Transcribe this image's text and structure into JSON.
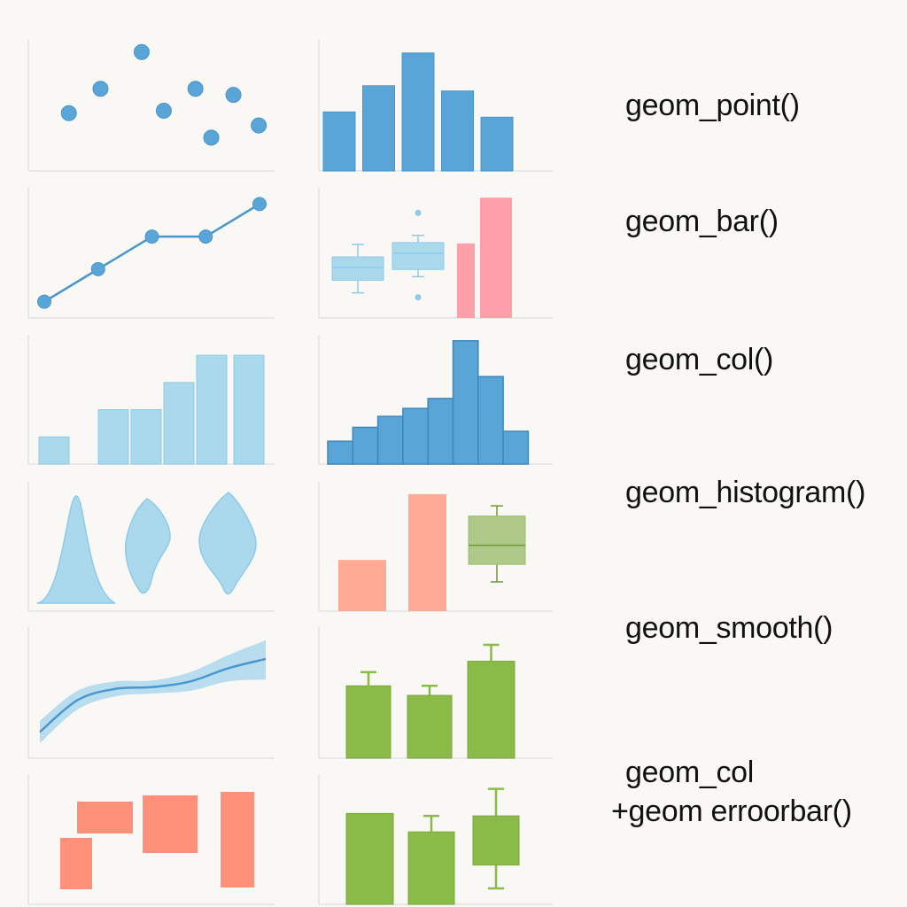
{
  "colors": {
    "background": "#faf8f4",
    "axis": "#e2e2e2",
    "blue": "#5aa5d8",
    "blue_line": "#4a97cf",
    "light_blue": "#aad8ec",
    "light_blue_stroke": "#8ecbe6",
    "pink": "#ff9faa",
    "salmon": "#ffaa94",
    "orange": "#ff8b73",
    "green": "#8aba47",
    "green_dark": "#6e9a34",
    "olive": "#aec988"
  },
  "labels": {
    "point": "geom_point()",
    "bar": "geom_bar()",
    "col": "geom_col()",
    "histogram": "geom_histogram()",
    "smooth": "geom_smooth()",
    "col_error_1": "geom_col",
    "col_error_2": "+geom erroorbar()"
  },
  "chart_data": [
    {
      "type": "scatter",
      "points": [
        [
          1,
          4
        ],
        [
          2,
          6
        ],
        [
          3.3,
          9
        ],
        [
          4,
          4.2
        ],
        [
          5,
          6
        ],
        [
          5.5,
          2
        ],
        [
          6.2,
          5.5
        ],
        [
          7,
          3
        ]
      ],
      "xlim": [
        0,
        7.5
      ],
      "ylim": [
        0,
        10
      ],
      "color": "blue"
    },
    {
      "type": "bar",
      "values": [
        4.5,
        6.5,
        9,
        6.1,
        4.1
      ],
      "ylim": [
        0,
        10
      ],
      "color": "blue"
    },
    {
      "type": "line",
      "points": [
        [
          0,
          1
        ],
        [
          1,
          3
        ],
        [
          2,
          5
        ],
        [
          3,
          5
        ],
        [
          4,
          7
        ]
      ],
      "xlim": [
        0,
        4
      ],
      "ylim": [
        0,
        8
      ],
      "color": "blue_line"
    },
    {
      "type": "boxplot_with_bars",
      "boxes": [
        {
          "x": 1,
          "q1": 4.2,
          "q3": 6.8,
          "median": 5.6,
          "whisker_low": 2.8,
          "whisker_high": 8.2,
          "outliers": []
        },
        {
          "x": 2,
          "q1": 5.4,
          "q3": 8.4,
          "median": 7.2,
          "whisker_low": 4.6,
          "whisker_high": 9.2,
          "outliers": [
            2.3,
            11.7
          ]
        }
      ],
      "bars": [
        {
          "x": 3.1,
          "value": 8.3,
          "color": "pink"
        },
        {
          "x": 3.7,
          "value": 13.4,
          "color": "pink"
        }
      ],
      "ylim": [
        0,
        14.5
      ]
    },
    {
      "type": "bar",
      "values": [
        2,
        0,
        4,
        4,
        6,
        8,
        8
      ],
      "ylim": [
        0,
        9.5
      ],
      "color": "light_blue"
    },
    {
      "type": "histogram",
      "values": [
        2.3,
        3.7,
        4.8,
        5.6,
        6.6,
        12.4,
        8.8,
        3.3
      ],
      "ylim": [
        0,
        13
      ],
      "color": "blue"
    },
    {
      "type": "violin",
      "series": [
        {
          "x": 1,
          "shape": "skewed"
        },
        {
          "x": 2,
          "shape": "double"
        },
        {
          "x": 3,
          "shape": "diamond"
        }
      ],
      "color": "light_blue"
    },
    {
      "type": "bar_with_box",
      "bars": [
        {
          "x": 1,
          "value": 3.5,
          "color": "salmon"
        },
        {
          "x": 2,
          "value": 8,
          "color": "salmon"
        }
      ],
      "box": {
        "x": 3,
        "q1": 3.2,
        "q3": 6.5,
        "median": 4.5,
        "whisker_low": 2,
        "whisker_high": 7.2,
        "color": "olive"
      },
      "ylim": [
        0,
        8.9
      ]
    },
    {
      "type": "smooth",
      "x": [
        0,
        1,
        2,
        3,
        4,
        5,
        6
      ],
      "y": [
        1.4,
        3.1,
        3.7,
        3.8,
        4.1,
        4.8,
        5.3
      ],
      "band": [
        [
          0.8,
          2.0
        ],
        [
          2.6,
          3.6
        ],
        [
          3.3,
          4.1
        ],
        [
          3.45,
          4.15
        ],
        [
          3.6,
          4.6
        ],
        [
          4.1,
          5.5
        ],
        [
          4.2,
          6.3
        ]
      ],
      "xlim": [
        0,
        6
      ],
      "ylim": [
        0,
        7
      ],
      "color": "blue_line"
    },
    {
      "type": "bar_errorbar",
      "bars": [
        {
          "x": 1,
          "value": 5.3,
          "err_high": 6.3
        },
        {
          "x": 2,
          "value": 4.6,
          "err_high": 5.3
        },
        {
          "x": 3,
          "value": 7.1,
          "err_high": 8.3
        }
      ],
      "ylim": [
        0,
        9.6
      ],
      "color": "green"
    },
    {
      "type": "tiles",
      "rects": [
        {
          "x0": 1,
          "x1": 2,
          "y0": 0.3,
          "y1": 3.3
        },
        {
          "x0": 1.5,
          "x1": 3.2,
          "y0": 3.3,
          "y1": 5.2
        },
        {
          "x0": 3.6,
          "x1": 5.2,
          "y0": 2.3,
          "y1": 5.6
        },
        {
          "x0": 6,
          "x1": 7,
          "y0": 0.4,
          "y1": 6.1
        }
      ],
      "xlim": [
        0,
        7.5
      ],
      "ylim": [
        0,
        7
      ],
      "color": "orange"
    },
    {
      "type": "bar_errorbar_box",
      "bars": [
        {
          "x": 1,
          "value": 7.4
        },
        {
          "x": 2,
          "value": 5.9,
          "err_high": 7.2
        }
      ],
      "box": {
        "x": 3,
        "q1": 3.2,
        "q3": 7.2,
        "whisker_low": 1.3,
        "whisker_high": 9.4
      },
      "ylim": [
        0,
        10.6
      ],
      "color": "green"
    }
  ]
}
